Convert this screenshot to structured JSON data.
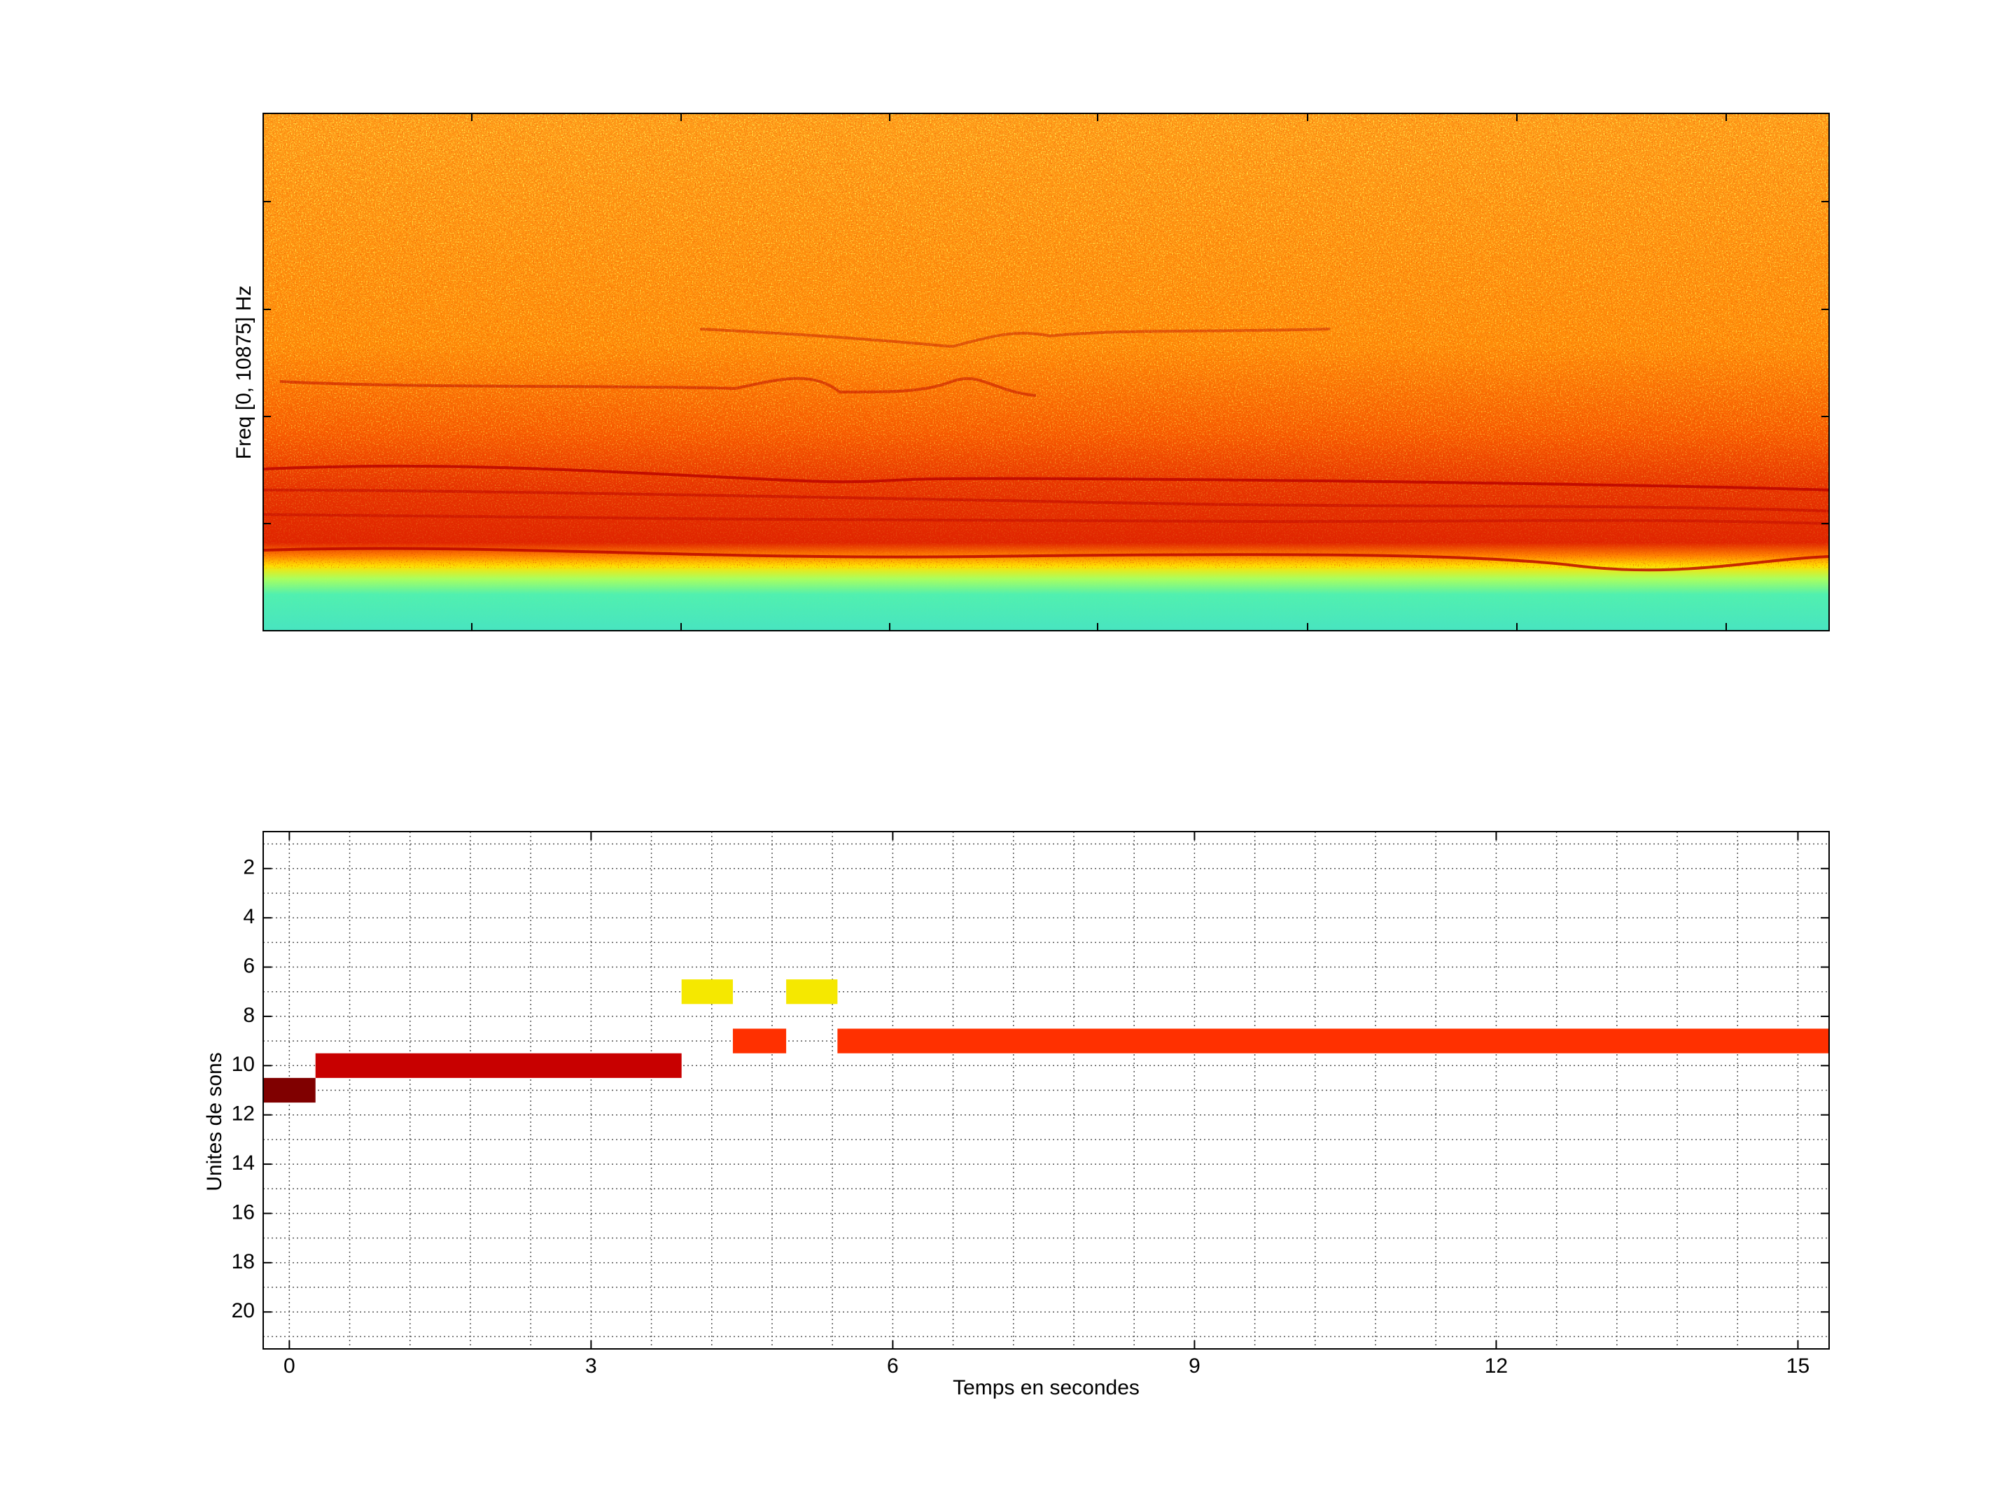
{
  "chart_data": [
    {
      "type": "spectrogram",
      "ylabel": "Freq [0, 10875] Hz"
    },
    {
      "type": "segments",
      "xlabel": "Temps en secondes",
      "ylabel": "Unites de sons",
      "xlim": [
        -0.26,
        15.31
      ],
      "ylim": [
        0.5,
        21.5
      ],
      "yreverse": true,
      "grid": true,
      "xticks": [
        0,
        3,
        6,
        9,
        12,
        15
      ],
      "yticks": [
        2,
        4,
        6,
        8,
        10,
        12,
        14,
        16,
        18,
        20
      ],
      "xminorticks": [
        0,
        0.6,
        1.2,
        1.8,
        2.4,
        3,
        3.6,
        4.2,
        4.8,
        5.4,
        6,
        6.6,
        7.2,
        7.8,
        8.4,
        9,
        9.6,
        10.2,
        10.8,
        11.4,
        12,
        12.6,
        13.2,
        13.8,
        14.4,
        15
      ],
      "yminorticks": [
        1,
        2,
        3,
        4,
        5,
        6,
        7,
        8,
        9,
        10,
        11,
        12,
        13,
        14,
        15,
        16,
        17,
        18,
        19,
        20,
        21
      ],
      "segments": [
        {
          "start": -0.26,
          "end": 0.26,
          "unit": 11,
          "color": "#800000"
        },
        {
          "start": 0.26,
          "end": 3.9,
          "unit": 10,
          "color": "#c80000"
        },
        {
          "start": 3.9,
          "end": 4.41,
          "unit": 7,
          "color": "#f5e800"
        },
        {
          "start": 4.41,
          "end": 4.94,
          "unit": 9,
          "color": "#ff3000"
        },
        {
          "start": 4.94,
          "end": 5.45,
          "unit": 7,
          "color": "#f5e800"
        },
        {
          "start": 5.45,
          "end": 15.31,
          "unit": 9,
          "color": "#ff3000"
        }
      ]
    }
  ]
}
